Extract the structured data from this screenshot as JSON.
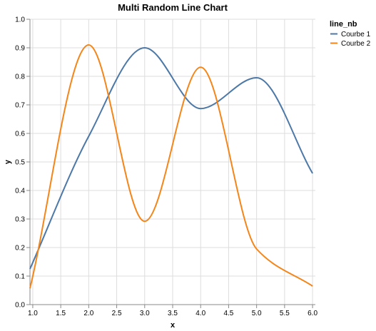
{
  "chart_data": {
    "type": "line",
    "title": "Multi Random Line Chart",
    "xlabel": "x",
    "ylabel": "y",
    "xlim": [
      0.95,
      6.05
    ],
    "ylim": [
      0.0,
      1.0
    ],
    "x_ticks": [
      1.0,
      1.5,
      2.0,
      2.5,
      3.0,
      3.5,
      4.0,
      4.5,
      5.0,
      5.5,
      6.0
    ],
    "x_tick_labels": [
      "1.0",
      "1.5",
      "2.0",
      "2.5",
      "3.0",
      "3.5",
      "4.0",
      "4.5",
      "5.0",
      "5.5",
      "6.0"
    ],
    "y_ticks": [
      0.0,
      0.1,
      0.2,
      0.3,
      0.4,
      0.5,
      0.6,
      0.7,
      0.8,
      0.9,
      1.0
    ],
    "y_tick_labels": [
      "0.0",
      "0.1",
      "0.2",
      "0.3",
      "0.4",
      "0.5",
      "0.6",
      "0.7",
      "0.8",
      "0.9",
      "1.0"
    ],
    "grid": true,
    "interpolation": "monotone",
    "legend": {
      "title": "line_nb",
      "placement": "top-right"
    },
    "series": [
      {
        "name": "Courbe 1",
        "color": "#4c78a8",
        "x": [
          0.95,
          2.0,
          3.0,
          4.0,
          5.0,
          6.0
        ],
        "y": [
          0.125,
          0.59,
          0.9,
          0.687,
          0.795,
          0.46
        ]
      },
      {
        "name": "Courbe 2",
        "color": "#f58518",
        "x": [
          0.95,
          2.0,
          3.0,
          4.0,
          5.0,
          6.0
        ],
        "y": [
          0.057,
          0.91,
          0.292,
          0.832,
          0.195,
          0.065
        ]
      }
    ]
  }
}
